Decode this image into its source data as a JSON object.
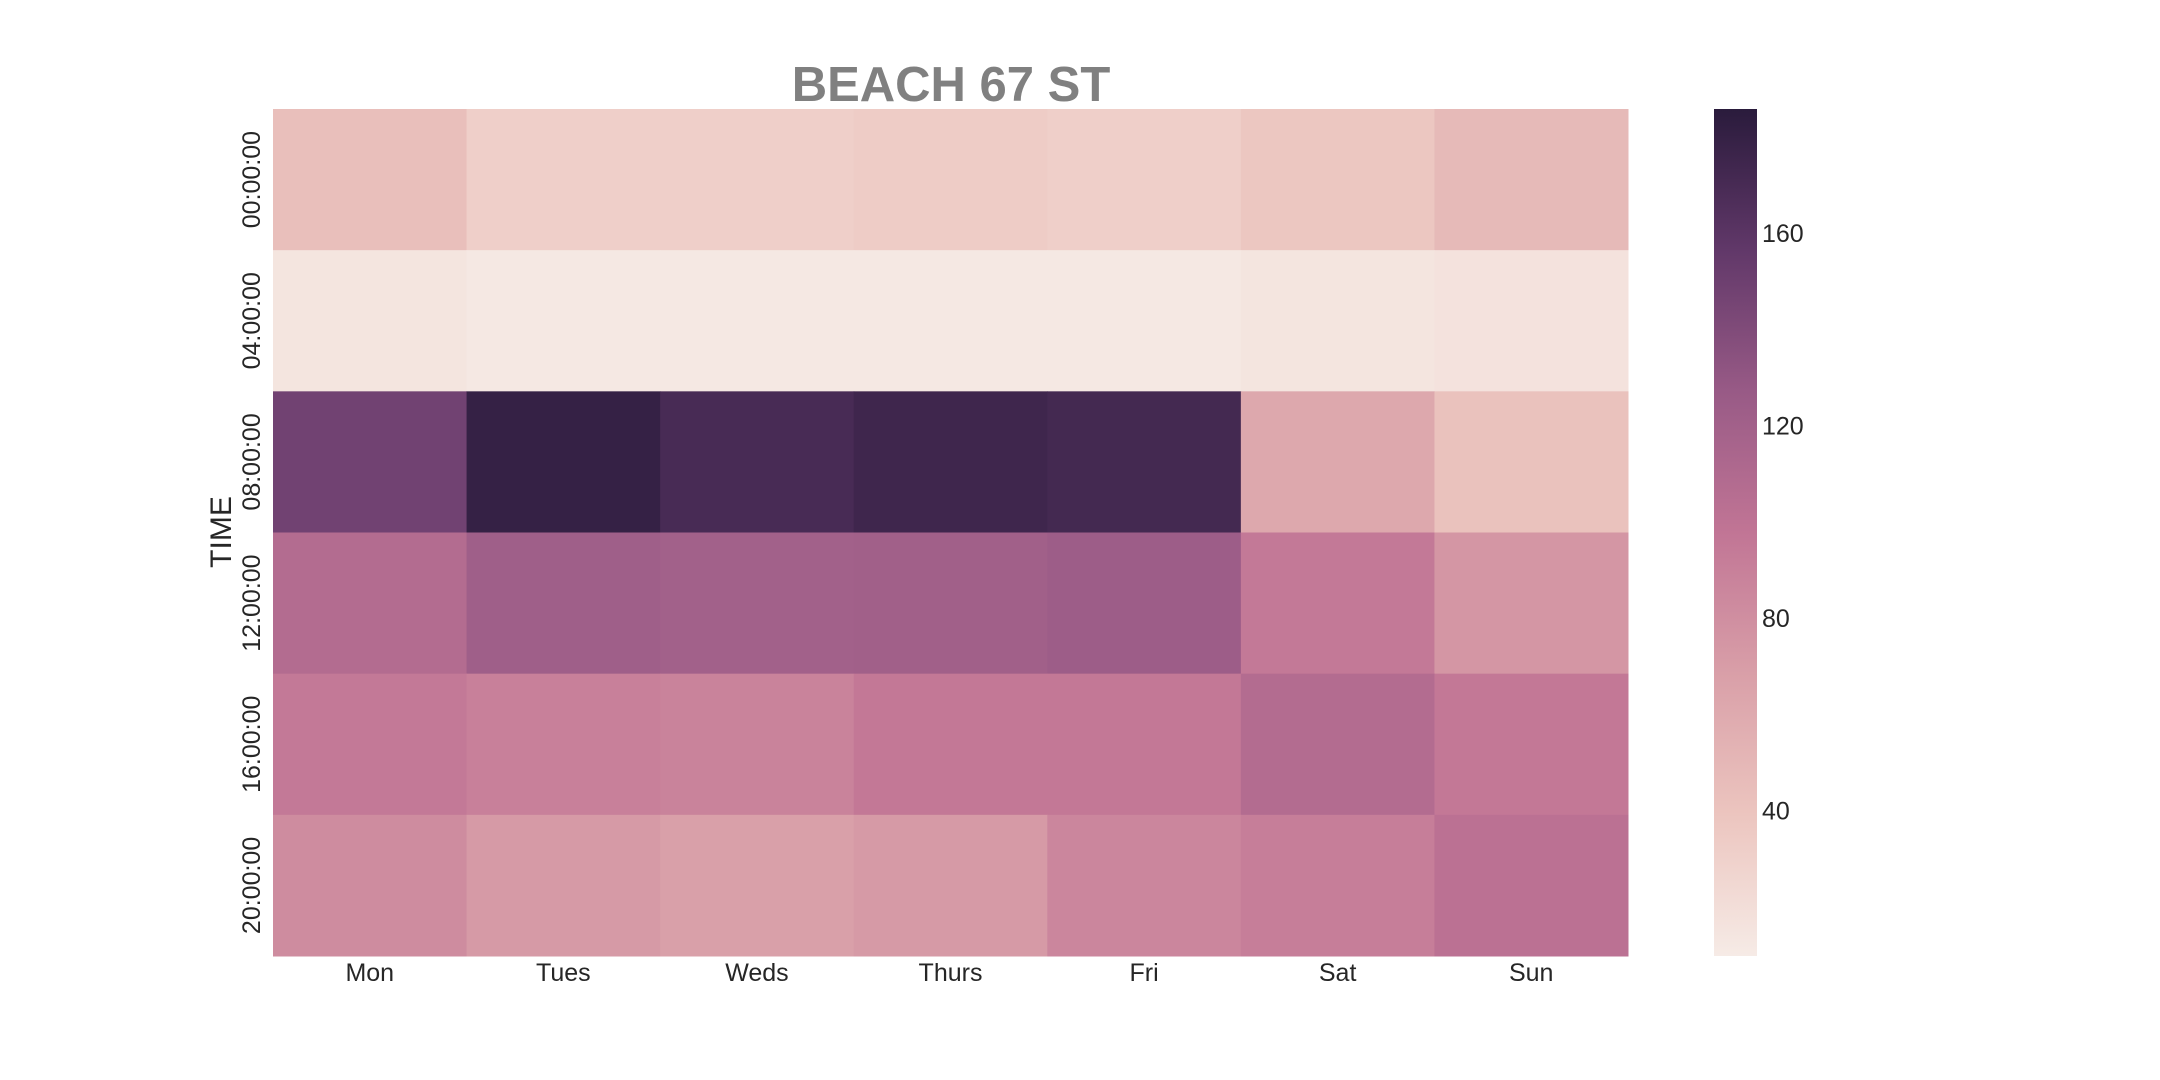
{
  "chart_data": {
    "type": "heatmap",
    "title": "BEACH 67 ST",
    "xlabel": "",
    "ylabel": "TIME",
    "x_categories": [
      "Mon",
      "Tues",
      "Weds",
      "Thurs",
      "Fri",
      "Sat",
      "Sun"
    ],
    "y_categories": [
      "00:00:00",
      "04:00:00",
      "08:00:00",
      "12:00:00",
      "16:00:00",
      "20:00:00"
    ],
    "values": [
      [
        44,
        32,
        32,
        34,
        32,
        38,
        48
      ],
      [
        15,
        12,
        12,
        12,
        12,
        15,
        17
      ],
      [
        148,
        180,
        170,
        175,
        172,
        62,
        42
      ],
      [
        108,
        122,
        120,
        121,
        124,
        95,
        75
      ],
      [
        95,
        90,
        88,
        96,
        96,
        108,
        96
      ],
      [
        82,
        72,
        68,
        72,
        86,
        92,
        102
      ]
    ],
    "colorbar": {
      "min": 10,
      "max": 186,
      "ticks": [
        40,
        80,
        120,
        160
      ]
    },
    "colormap": [
      "#f6ebe6",
      "#ecc5bf",
      "#d99fa8",
      "#c17595",
      "#985a86",
      "#613869",
      "#2a1b3c"
    ]
  }
}
